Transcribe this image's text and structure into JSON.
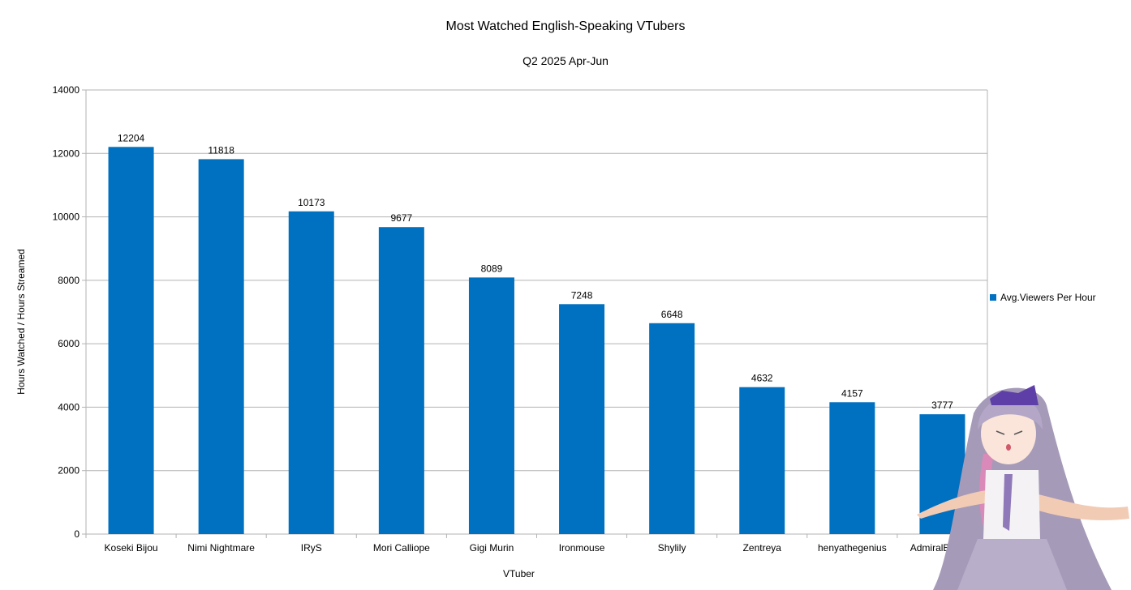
{
  "chart_data": {
    "type": "bar",
    "title": "Most Watched English-Speaking VTubers",
    "subtitle": "Q2 2025 Apr-Jun",
    "xlabel": "VTuber",
    "ylabel": "Hours Watched / Hours Streamed",
    "ylim": [
      0,
      14000
    ],
    "yticks": [
      0,
      2000,
      4000,
      6000,
      8000,
      10000,
      12000,
      14000
    ],
    "grid": true,
    "legend_position": "right",
    "categories": [
      "Koseki Bijou",
      "Nimi Nightmare",
      "IRyS",
      "Mori Calliope",
      "Gigi Murin",
      "Ironmouse",
      "Shylily",
      "Zentreya",
      "henyathegenius",
      "AdmiralBahroo"
    ],
    "series": [
      {
        "name": "Avg.Viewers Per Hour",
        "color": "#0070c0",
        "values": [
          12204,
          11818,
          10173,
          9677,
          8089,
          7248,
          6648,
          4632,
          4157,
          3777
        ]
      }
    ]
  }
}
